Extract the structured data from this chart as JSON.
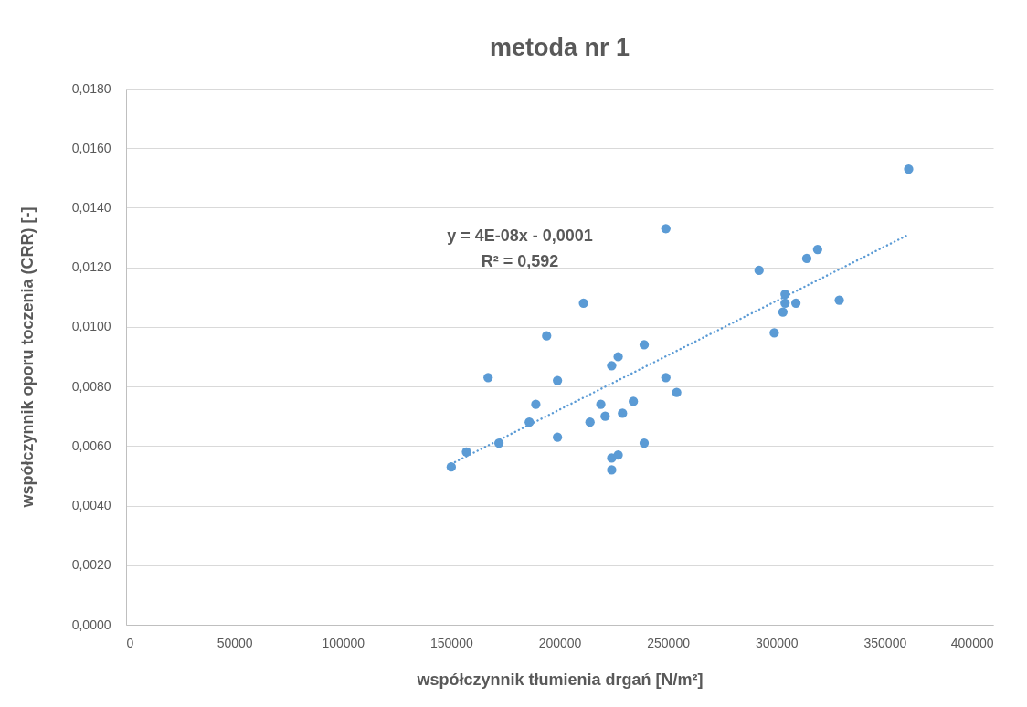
{
  "chart_data": {
    "type": "scatter",
    "title": "metoda nr 1",
    "xlabel": "współczynnik tłumienia drgań [N/m²]",
    "ylabel": "współczynnik oporu toczenia (CRR) [-]",
    "xlim": [
      0,
      400000
    ],
    "xticks": [
      0,
      50000,
      100000,
      150000,
      200000,
      250000,
      300000,
      350000,
      400000
    ],
    "ylim": [
      0,
      0.018
    ],
    "yticks": [
      {
        "value": 0,
        "label": "0,0000"
      },
      {
        "value": 0.002,
        "label": "0,0020"
      },
      {
        "value": 0.004,
        "label": "0,0040"
      },
      {
        "value": 0.006,
        "label": "0,0060"
      },
      {
        "value": 0.008,
        "label": "0,0080"
      },
      {
        "value": 0.01,
        "label": "0,0100"
      },
      {
        "value": 0.012,
        "label": "0,0120"
      },
      {
        "value": 0.014,
        "label": "0,0140"
      },
      {
        "value": 0.016,
        "label": "0,0160"
      },
      {
        "value": 0.018,
        "label": "0,0180"
      }
    ],
    "grid": "y",
    "series": [
      {
        "color": "#5b9bd5",
        "marker": "circle",
        "x": [
          150000,
          157000,
          167000,
          172000,
          186000,
          189000,
          194000,
          199000,
          199000,
          211000,
          214000,
          219000,
          221000,
          224000,
          227000,
          224000,
          227000,
          224000,
          229000,
          234000,
          239000,
          239000,
          249000,
          249000,
          254000,
          292000,
          299000,
          303000,
          304000,
          304000,
          309000,
          314000,
          319000,
          329000,
          361000
        ],
        "values": [
          0.0053,
          0.0058,
          0.0083,
          0.0061,
          0.0068,
          0.0074,
          0.0097,
          0.0082,
          0.0063,
          0.0108,
          0.0068,
          0.0074,
          0.007,
          0.0087,
          0.009,
          0.0056,
          0.0057,
          0.0052,
          0.0071,
          0.0075,
          0.0094,
          0.0061,
          0.0133,
          0.0083,
          0.0078,
          0.0119,
          0.0098,
          0.0105,
          0.0111,
          0.0108,
          0.0108,
          0.0123,
          0.0126,
          0.0109,
          0.0153
        ]
      },
      {
        "type": "line",
        "color": "#5b9bd5",
        "line_style": "dotted",
        "marker": "none",
        "x": [
          150000,
          361000
        ],
        "values": [
          0.0054,
          0.0131
        ]
      }
    ],
    "annotations": [
      "y = 4E-08x - 0,0001",
      "R² = 0,592"
    ]
  }
}
